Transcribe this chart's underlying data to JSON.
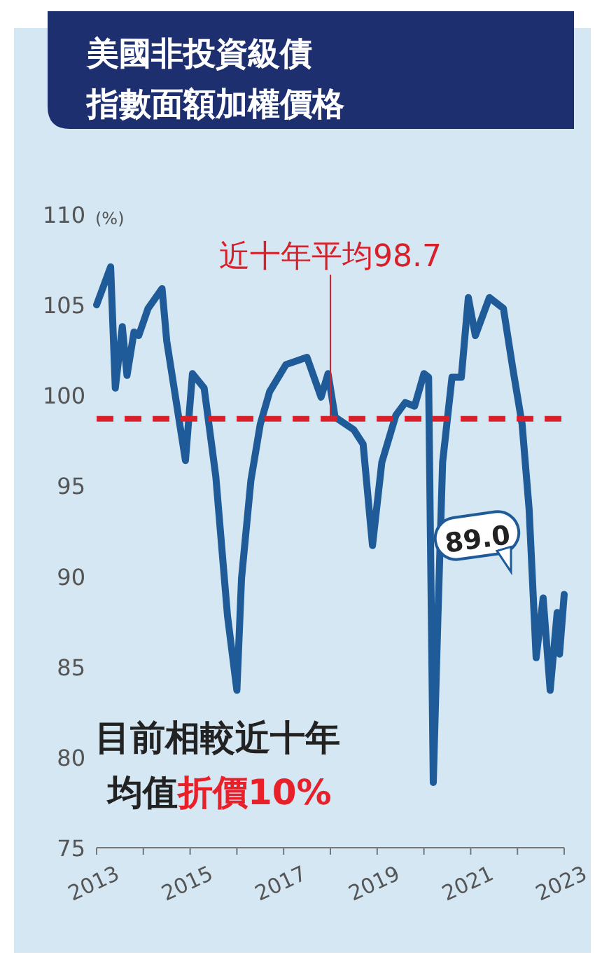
{
  "chart_data": {
    "type": "line",
    "title": "美國非投資級債指數面額加權價格",
    "ylabel": "(%)",
    "x": [
      2013.0,
      2013.3,
      2013.4,
      2013.55,
      2013.65,
      2013.8,
      2013.9,
      2014.1,
      2014.4,
      2014.5,
      2014.9,
      2015.05,
      2015.3,
      2015.55,
      2015.8,
      2016.0,
      2016.1,
      2016.3,
      2016.5,
      2016.7,
      2017.05,
      2017.5,
      2017.8,
      2017.95,
      2018.1,
      2018.5,
      2018.7,
      2018.9,
      2019.1,
      2019.4,
      2019.6,
      2019.8,
      2020.0,
      2020.1,
      2020.2,
      2020.3,
      2020.4,
      2020.6,
      2020.8,
      2020.95,
      2021.1,
      2021.4,
      2021.7,
      2021.9,
      2022.1,
      2022.25,
      2022.4,
      2022.55,
      2022.7,
      2022.85,
      2022.9,
      2023.0
    ],
    "series": [
      {
        "color": "#1f5b99",
        "values": [
          105.0,
          107.1,
          100.4,
          103.8,
          101.1,
          103.5,
          103.3,
          104.8,
          105.9,
          103.0,
          96.4,
          101.2,
          100.4,
          95.5,
          87.8,
          83.7,
          89.9,
          95.3,
          98.4,
          100.2,
          101.7,
          102.1,
          99.9,
          101.2,
          98.8,
          98.1,
          97.3,
          91.7,
          96.3,
          98.9,
          99.6,
          99.4,
          101.2,
          101.0,
          78.6,
          87.8,
          96.3,
          101.0,
          101.0,
          105.4,
          103.3,
          105.4,
          104.8,
          101.5,
          98.4,
          93.7,
          85.5,
          88.8,
          83.7,
          88.0,
          85.7,
          89.0
        ]
      }
    ],
    "xlim": [
      2013,
      2023
    ],
    "xticks": [
      2013,
      {
        "value": 2014,
        "label": null
      },
      2015,
      {
        "value": 2016,
        "label": null
      },
      2017,
      {
        "value": 2018,
        "label": null
      },
      2019,
      {
        "value": 2020,
        "label": null
      },
      2021,
      {
        "value": 2022,
        "label": null
      },
      2023
    ],
    "ylim": [
      75,
      110
    ],
    "yticks": [
      75,
      80,
      85,
      90,
      95,
      100,
      105,
      110
    ],
    "ref_lines": [
      {
        "axis": "y",
        "value": 98.7,
        "label": "近十年平均98.7",
        "color": "#d7202a",
        "line_style": "dashed"
      }
    ],
    "annotations": [
      {
        "text": "89.0",
        "x": 2023,
        "y": 89.0
      },
      "目前相較近十年",
      "均值",
      "折價10%"
    ],
    "grid": false
  }
}
